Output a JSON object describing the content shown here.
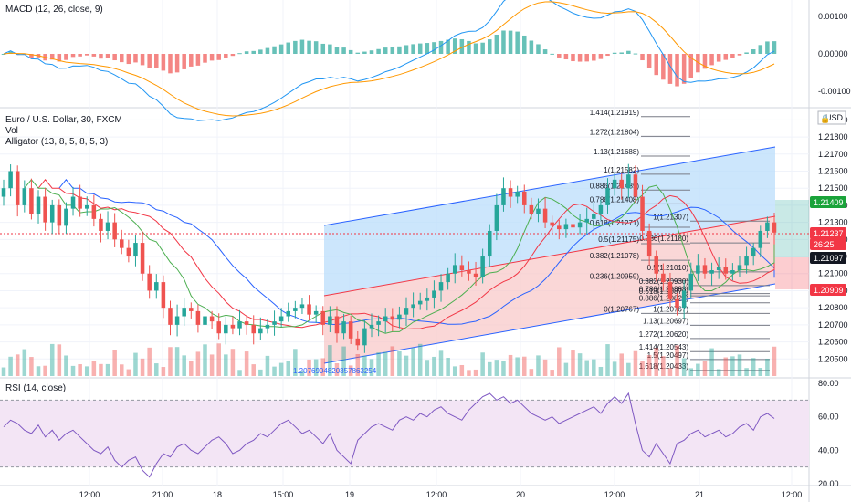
{
  "panes": {
    "macd": {
      "label": "MACD (12, 26, close, 9)",
      "ticks": [
        "0.00100",
        "0.00000",
        "-0.00100"
      ]
    },
    "price": {
      "labels": [
        "Euro / U.S. Dollar, 30, FXCM",
        "Vol",
        "Alligator (13, 8, 5, 8, 5, 3)"
      ],
      "currency": "USD",
      "ticks": [
        "1.21900",
        "1.21800",
        "1.21700",
        "1.21600",
        "1.21500",
        "1.21400",
        "1.21300",
        "1.21200",
        "1.21100",
        "1.21000",
        "1.20900",
        "1.20800",
        "1.20700",
        "1.20600",
        "1.20500"
      ],
      "badges": [
        {
          "text": "1.21409",
          "color": "#1aa33a"
        },
        {
          "text": "1.21237",
          "color": "#f23645"
        },
        {
          "text": "26:25",
          "color": "#f23645"
        },
        {
          "text": "1.21097",
          "color": "#131722"
        },
        {
          "text": "1.20909",
          "color": "#f23645"
        }
      ],
      "channel_label": "1.2076904820357863254",
      "fib_upper": [
        "1.414(1.21919)",
        "1.272(1.21804)",
        "1.13(1.21688)",
        "1(1.21582)",
        "0.886(1.21489)",
        "0.786(1.21408)",
        "0.618(1.21271)",
        "0.5(1.21175)",
        "0.382(1.21078)",
        "0.236(1.20959)",
        "0(1.20767)"
      ],
      "fib_lower": [
        "1(1.21307)",
        "0.786(1.21180)",
        "0.5(1.21010)",
        "0.382(1.20930)",
        "0.618(1.20870)",
        "0.786(1.20883)",
        "0.886(1.20829)",
        "1(1.20767)",
        "1.13(1.20697)",
        "1.272(1.20620)",
        "1.414(1.20543)",
        "1.5(1.20497)",
        "1.618(1.20433)"
      ]
    },
    "rsi": {
      "label": "RSI (14, close)",
      "ticks": [
        "80.00",
        "60.00",
        "40.00",
        "20.00"
      ]
    }
  },
  "time_axis": [
    "12:00",
    "21:00",
    "18",
    "15:00",
    "19",
    "12:00",
    "20",
    "12:00",
    "21",
    "12:00"
  ],
  "colors": {
    "up": "#26a69a",
    "down": "#ef5350",
    "channel_upper": "#bbdefb",
    "channel_lower": "#f8c9c9",
    "rsi_line": "#7e57c2",
    "rsi_band": "#f3e5f5",
    "macd_line": "#2196f3",
    "signal_line": "#ff9800"
  },
  "chart_data": {
    "type": "candlestick",
    "title": "Euro / U.S. Dollar, 30, FXCM",
    "close": [
      1.215,
      1.216,
      1.214,
      1.215,
      1.2135,
      1.2145,
      1.213,
      1.214,
      1.2128,
      1.2138,
      1.2145,
      1.2138,
      1.214,
      1.2132,
      1.2125,
      1.213,
      1.212,
      1.2115,
      1.211,
      1.2118,
      1.21,
      1.209,
      1.2095,
      1.208,
      1.207,
      1.2075,
      1.208,
      1.2078,
      1.207,
      1.2075,
      1.2072,
      1.2065,
      1.207,
      1.2068,
      1.2072,
      1.207,
      1.2065,
      1.2068,
      1.207,
      1.2072,
      1.2075,
      1.2078,
      1.208,
      1.2082,
      1.2076,
      1.2078,
      1.207,
      1.2075,
      1.2065,
      1.2072,
      1.2062,
      1.2058,
      1.2068,
      1.207,
      1.2072,
      1.2075,
      1.2073,
      1.2076,
      1.208,
      1.2082,
      1.2084,
      1.2086,
      1.209,
      1.2095,
      1.21,
      1.2105,
      1.2102,
      1.21,
      1.2098,
      1.211,
      1.2125,
      1.214,
      1.215,
      1.2145,
      1.2148,
      1.214,
      1.2135,
      1.2138,
      1.213,
      1.2128,
      1.2126,
      1.2129,
      1.2127,
      1.213,
      1.2132,
      1.2135,
      1.214,
      1.215,
      1.2155,
      1.215,
      1.2158,
      1.2145,
      1.2125,
      1.211,
      1.21,
      1.2095,
      1.2085,
      1.208,
      1.209,
      1.21,
      1.2105,
      1.21,
      1.2102,
      1.2104,
      1.21,
      1.2102,
      1.2105,
      1.211,
      1.2115,
      1.2125,
      1.213,
      1.2124
    ],
    "rsi": [
      54,
      58,
      56,
      52,
      50,
      55,
      48,
      52,
      46,
      50,
      52,
      48,
      44,
      40,
      38,
      42,
      34,
      30,
      34,
      36,
      28,
      24,
      32,
      38,
      36,
      42,
      44,
      40,
      38,
      42,
      46,
      48,
      44,
      38,
      40,
      44,
      46,
      50,
      48,
      52,
      56,
      58,
      54,
      50,
      52,
      48,
      44,
      50,
      40,
      36,
      32,
      46,
      50,
      54,
      56,
      54,
      52,
      58,
      60,
      58,
      62,
      60,
      64,
      66,
      62,
      60,
      58,
      64,
      68,
      72,
      74,
      70,
      72,
      68,
      70,
      66,
      62,
      60,
      58,
      60,
      56,
      58,
      60,
      62,
      64,
      66,
      62,
      68,
      72,
      68,
      74,
      56,
      40,
      36,
      44,
      38,
      32,
      44,
      46,
      50,
      52,
      48,
      50,
      52,
      48,
      50,
      54,
      56,
      52,
      60,
      62,
      59
    ],
    "rsi_ylim": [
      20,
      80
    ],
    "rsi_bands": [
      30,
      70
    ],
    "macd_ylim": [
      -0.0013,
      0.0013
    ],
    "ylim": [
      1.204,
      1.2195
    ]
  }
}
